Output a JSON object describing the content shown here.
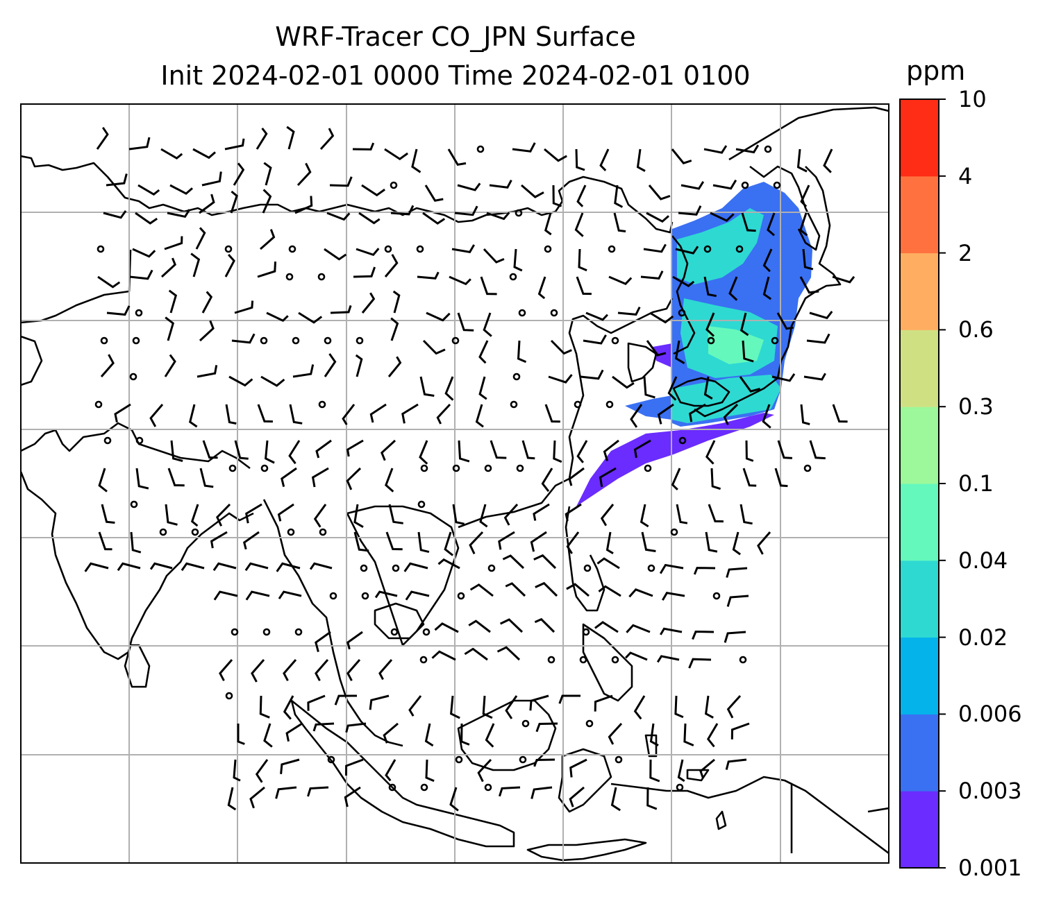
{
  "title": {
    "line1": "WRF-Tracer CO_JPN Surface",
    "line2": "Init 2024-02-01 0000 Time 2024-02-01 0100"
  },
  "colorbar": {
    "unit": "ppm",
    "ticks": [
      "0.001",
      "0.003",
      "0.006",
      "0.02",
      "0.04",
      "0.1",
      "0.3",
      "0.6",
      "2",
      "4",
      "10"
    ],
    "colors": [
      "#6a2cff",
      "#3a70f2",
      "#04b3ea",
      "#2ed9d2",
      "#64f8bc",
      "#9cf89a",
      "#cfe083",
      "#ffae61",
      "#ff7240",
      "#ff2c16"
    ]
  },
  "map": {
    "grid": true,
    "plume_colors": [
      "#6a2cff",
      "#3a70f2",
      "#2ed9d2",
      "#64f8bc"
    ]
  }
}
